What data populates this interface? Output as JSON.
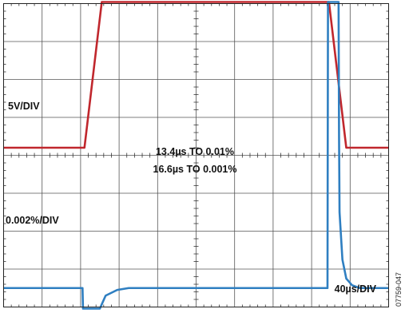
{
  "chart_data": {
    "type": "line",
    "title": "",
    "xlabel": "",
    "ylabel": "",
    "grid": true,
    "divisions": {
      "x": 10,
      "y": 8
    },
    "xlim": [
      0,
      400
    ],
    "x_unit": "µs",
    "series": [
      {
        "channel": "upper",
        "scale_label": "5V/DIV",
        "color": "#c0272d",
        "x": [
          0,
          84,
          102,
          338,
          356,
          400
        ],
        "y": [
          0,
          0,
          20,
          20,
          0,
          0
        ]
      },
      {
        "channel": "lower",
        "scale_label": "0.002%/DIV",
        "color": "#2f7fc1",
        "x": [
          0,
          82,
          82.5,
          83,
          95,
          96,
          97,
          100,
          106,
          118,
          130,
          200,
          300,
          336.5,
          337,
          337.5,
          348,
          348.5,
          349,
          352,
          356,
          362,
          370,
          400
        ],
        "y": [
          0,
          0,
          -0.04,
          -0.04,
          -0.04,
          -0.008,
          -0.004,
          -0.0015,
          -0.0004,
          -0.0001,
          0,
          0,
          0,
          0,
          0.04,
          0.04,
          0.04,
          0.008,
          0.004,
          0.0015,
          0.0005,
          0.00015,
          0,
          0
        ]
      }
    ],
    "annotations": [
      "13.4µs TO 0.01%",
      "16.6µs TO 0.001%"
    ],
    "time_scale_label": "40µs/DIV",
    "figure_id": "07759-047"
  }
}
